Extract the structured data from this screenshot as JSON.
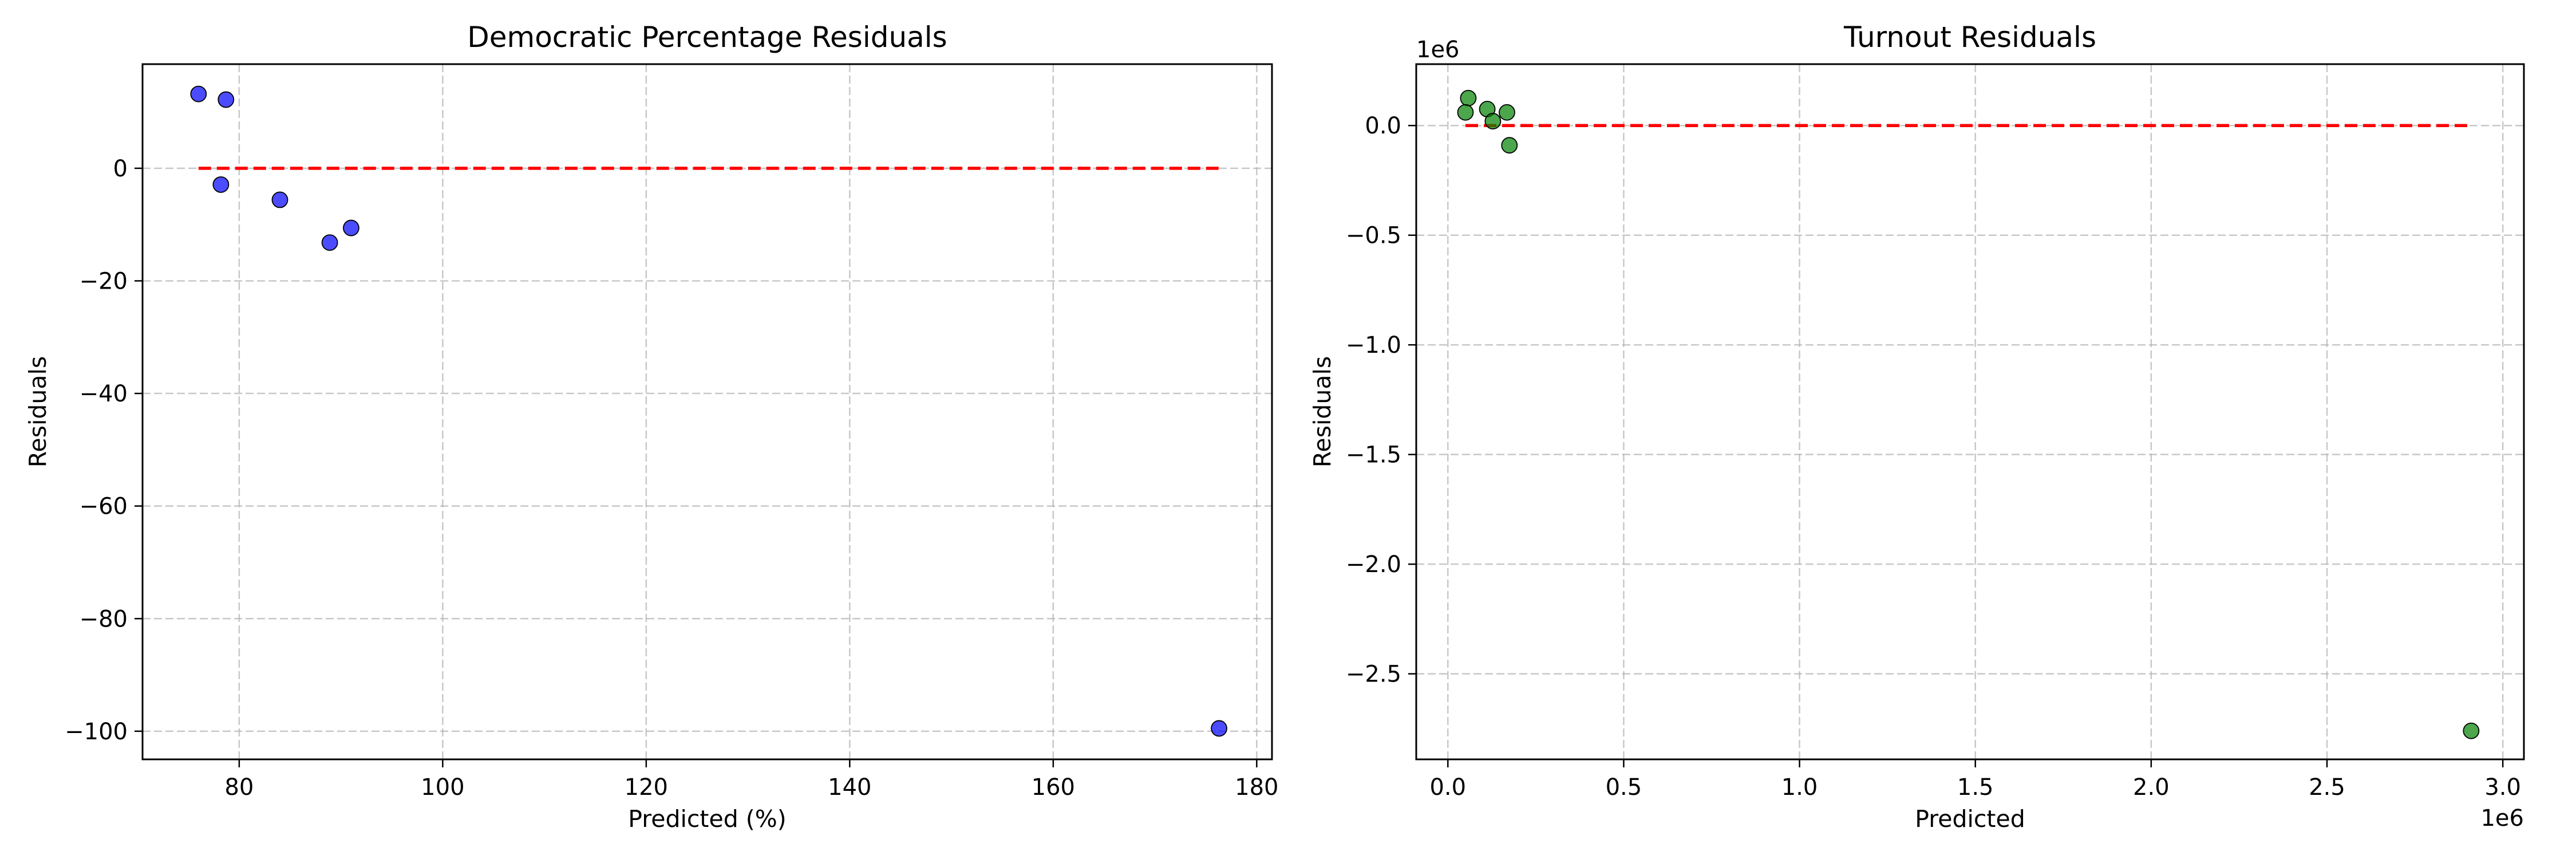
{
  "chart_data": [
    {
      "type": "scatter",
      "title": "Democratic Percentage Residuals",
      "xlabel": "Predicted (%)",
      "ylabel": "Residuals",
      "xlim": [
        70.5,
        181.5
      ],
      "ylim": [
        -105,
        18.5
      ],
      "xticks": [
        80,
        100,
        120,
        140,
        160,
        180
      ],
      "yticks": [
        -100,
        -80,
        -60,
        -40,
        -20,
        0
      ],
      "xtick_labels": [
        "80",
        "100",
        "120",
        "140",
        "160",
        "180"
      ],
      "ytick_labels": [
        "−100",
        "−80",
        "−60",
        "−40",
        "−20",
        "0"
      ],
      "x_offset_label": "",
      "y_offset_label": "",
      "grid": true,
      "point_color": "#0000ff",
      "reference_line": {
        "y": 0,
        "x_from": 76,
        "x_to": 176.3,
        "color": "#ff0000",
        "style": "dashed"
      },
      "series": [
        {
          "x": [
            76.0,
            78.7,
            78.2,
            84.0,
            88.9,
            91.0,
            176.3
          ],
          "y": [
            13.2,
            12.2,
            -2.9,
            -5.6,
            -13.2,
            -10.6,
            -99.5
          ]
        }
      ]
    },
    {
      "type": "scatter",
      "title": "Turnout Residuals",
      "xlabel": "Predicted",
      "ylabel": "Residuals",
      "xlim": [
        -90000,
        3060000
      ],
      "ylim": [
        -2890000,
        280000
      ],
      "xticks": [
        0,
        500000,
        1000000,
        1500000,
        2000000,
        2500000,
        3000000
      ],
      "yticks": [
        -2500000,
        -2000000,
        -1500000,
        -1000000,
        -500000,
        0
      ],
      "xtick_labels": [
        "0.0",
        "0.5",
        "1.0",
        "1.5",
        "2.0",
        "2.5",
        "3.0"
      ],
      "ytick_labels": [
        "−2.5",
        "−2.0",
        "−1.5",
        "−1.0",
        "−0.5",
        "0.0"
      ],
      "x_offset_label": "1e6",
      "y_offset_label": "1e6",
      "grid": true,
      "point_color": "#008000",
      "reference_line": {
        "y": 0,
        "x_from": 50000,
        "x_to": 2910000,
        "color": "#ff0000",
        "style": "dashed"
      },
      "series": [
        {
          "x": [
            58000,
            50000,
            112000,
            128000,
            168000,
            175000,
            2910000
          ],
          "y": [
            125000,
            60000,
            75000,
            20000,
            60000,
            -90000,
            -2760000
          ]
        }
      ]
    }
  ]
}
